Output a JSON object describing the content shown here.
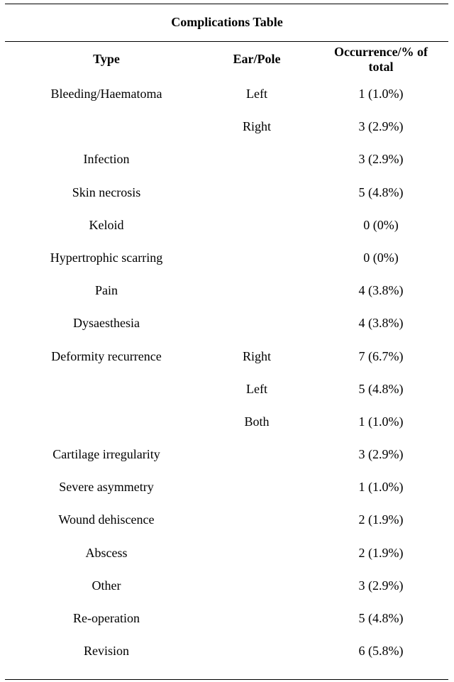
{
  "table": {
    "title": "Complications Table",
    "headers": {
      "type": "Type",
      "ear_pole": "Ear/Pole",
      "occurrence_line1": "Occurrence/% of",
      "occurrence_line2": "total"
    },
    "rows": [
      {
        "type": "Bleeding/Haematoma",
        "ear_pole": "Left",
        "occurrence": "1 (1.0%)"
      },
      {
        "type": "",
        "ear_pole": "Right",
        "occurrence": "3 (2.9%)"
      },
      {
        "type": "Infection",
        "ear_pole": "",
        "occurrence": "3 (2.9%)"
      },
      {
        "type": "Skin necrosis",
        "ear_pole": "",
        "occurrence": "5 (4.8%)"
      },
      {
        "type": "Keloid",
        "ear_pole": "",
        "occurrence": "0 (0%)"
      },
      {
        "type": "Hypertrophic scarring",
        "ear_pole": "",
        "occurrence": "0 (0%)"
      },
      {
        "type": "Pain",
        "ear_pole": "",
        "occurrence": "4 (3.8%)"
      },
      {
        "type": "Dysaesthesia",
        "ear_pole": "",
        "occurrence": "4 (3.8%)"
      },
      {
        "type": "Deformity recurrence",
        "ear_pole": "Right",
        "occurrence": "7 (6.7%)"
      },
      {
        "type": "",
        "ear_pole": "Left",
        "occurrence": "5 (4.8%)"
      },
      {
        "type": "",
        "ear_pole": "Both",
        "occurrence": "1 (1.0%)"
      },
      {
        "type": "Cartilage irregularity",
        "ear_pole": "",
        "occurrence": "3 (2.9%)"
      },
      {
        "type": "Severe asymmetry",
        "ear_pole": "",
        "occurrence": "1 (1.0%)"
      },
      {
        "type": "Wound dehiscence",
        "ear_pole": "",
        "occurrence": "2 (1.9%)"
      },
      {
        "type": "Abscess",
        "ear_pole": "",
        "occurrence": "2 (1.9%)"
      },
      {
        "type": "Other",
        "ear_pole": "",
        "occurrence": "3 (2.9%)"
      },
      {
        "type": "Re-operation",
        "ear_pole": "",
        "occurrence": "5 (4.8%)"
      },
      {
        "type": "Revision",
        "ear_pole": "",
        "occurrence": "6 (5.8%)"
      }
    ]
  }
}
